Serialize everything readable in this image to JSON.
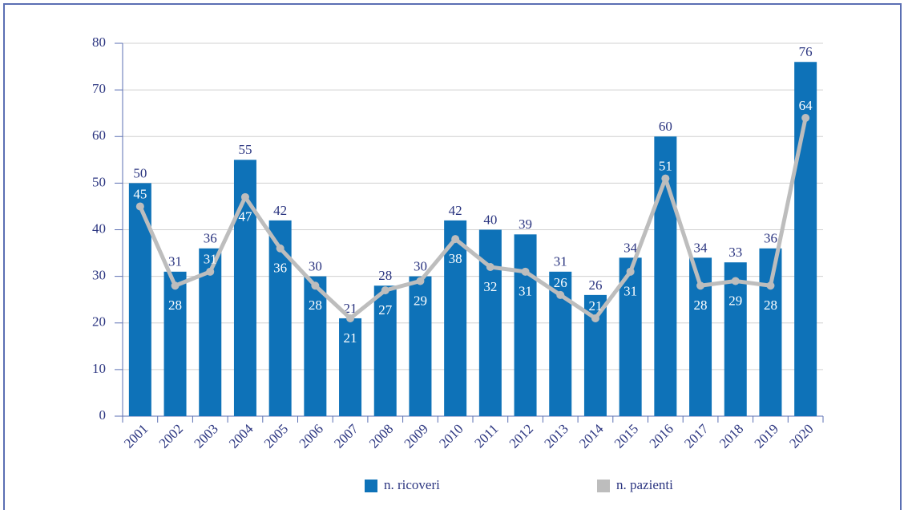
{
  "chart_data": {
    "type": "bar-line",
    "categories": [
      "2001",
      "2002",
      "2003",
      "2004",
      "2005",
      "2006",
      "2007",
      "2008",
      "2009",
      "2010",
      "2011",
      "2012",
      "2013",
      "2014",
      "2015",
      "2016",
      "2017",
      "2018",
      "2019",
      "2020"
    ],
    "series": [
      {
        "name": "n. ricoveri",
        "type": "bar",
        "color": "#0e72b8",
        "values": [
          50,
          31,
          36,
          55,
          42,
          30,
          21,
          28,
          30,
          42,
          40,
          39,
          31,
          26,
          34,
          60,
          34,
          33,
          36,
          76
        ]
      },
      {
        "name": "n. pazienti",
        "type": "line",
        "color": "#bdbdbd",
        "values": [
          45,
          28,
          31,
          47,
          36,
          28,
          21,
          27,
          29,
          38,
          32,
          31,
          26,
          21,
          31,
          51,
          28,
          29,
          28,
          64
        ]
      }
    ],
    "ylim": [
      0,
      80
    ],
    "yticks": [
      0,
      10,
      20,
      30,
      40,
      50,
      60,
      70,
      80
    ],
    "grid": true,
    "legend": "bottom"
  }
}
